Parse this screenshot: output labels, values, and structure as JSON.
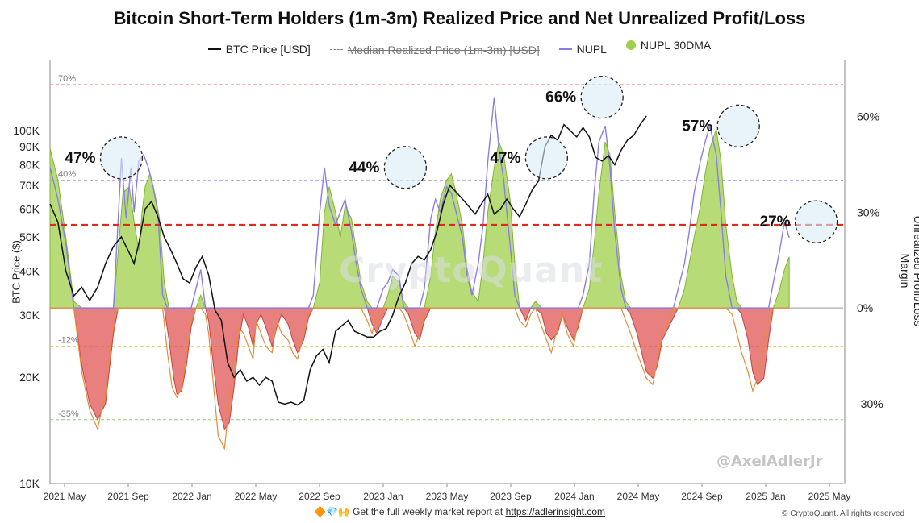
{
  "title": "Bitcoin Short-Term Holders (1m-3m)  Realized Price and Net Unrealized Profit/Loss",
  "legend": {
    "btc": "BTC Price [USD]",
    "median": "Median Realized Price (1m-3m) [USD]",
    "nupl": "NUPL",
    "nupl30": "NUPL 30DMA"
  },
  "footer": {
    "icons": "🔶💎🙌",
    "text": "Get the full weekly market report at",
    "url": "https://adlerinsight.com"
  },
  "copyright": "© CryptoQuant. All rights reserved",
  "watermark": "CryptoQuant",
  "author": "@AxelAdlerJr",
  "colors": {
    "btc": "#111111",
    "nupl": "#8a7de6",
    "positive_fill": "#9fd04a",
    "negative_fill": "#e05555",
    "orange_line": "#e88a3a",
    "red_dashed": "#e02a1a"
  },
  "chart_data": {
    "type": "area",
    "title": "Bitcoin Short-Term Holders (1m-3m)  Realized Price and Net Unrealized Profit/Loss",
    "ylabel_left": "BTC Price ($)",
    "ylabel_right": "Unrealized Profit/Loss Margin",
    "x_ticks": [
      "2021 May",
      "2021 Sep",
      "2022 Jan",
      "2022 May",
      "2022 Sep",
      "2023 Jan",
      "2023 May",
      "2023 Sep",
      "2024 Jan",
      "2024 May",
      "2024 Sep",
      "2025 Jan",
      "2025 May"
    ],
    "left_ticks": [
      {
        "label": "100K",
        "value": 100000
      },
      {
        "label": "90K",
        "value": 90000
      },
      {
        "label": "80K",
        "value": 80000
      },
      {
        "label": "70K",
        "value": 70000
      },
      {
        "label": "60K",
        "value": 60000
      },
      {
        "label": "50K",
        "value": 50000
      },
      {
        "label": "40K",
        "value": 40000
      },
      {
        "label": "30K",
        "value": 30000
      },
      {
        "label": "20K",
        "value": 20000
      },
      {
        "label": "10K",
        "value": 10000
      }
    ],
    "ylim_left": [
      10000,
      150000
    ],
    "right_ticks": [
      {
        "label": "60%",
        "value": 60
      },
      {
        "label": "30%",
        "value": 30
      },
      {
        "label": "0%",
        "value": 0
      },
      {
        "label": "-30%",
        "value": -30
      }
    ],
    "ylim_right": [
      -55,
      75
    ],
    "ref_lines": [
      {
        "label": "70%",
        "value": 70,
        "color": "#e8a0a0"
      },
      {
        "label": "40%",
        "value": 40,
        "color": "#a9a3ee"
      },
      {
        "label": "-12%",
        "value": -12,
        "color": "#d6d36a"
      },
      {
        "label": "-35%",
        "value": -35,
        "color": "#8ccc7a"
      }
    ],
    "red_line_value": 26,
    "annotations": [
      {
        "label": "47%",
        "x": 4.5,
        "value": 47
      },
      {
        "label": "44%",
        "x": 22.4,
        "value": 44
      },
      {
        "label": "47%",
        "x": 31.3,
        "value": 47
      },
      {
        "label": "66%",
        "x": 34.8,
        "value": 66
      },
      {
        "label": "57%",
        "x": 43.4,
        "value": 57
      },
      {
        "label": "27%",
        "x": 48.3,
        "value": 27
      }
    ],
    "x_range": [
      0,
      50
    ],
    "nupl30": [
      [
        0,
        50
      ],
      [
        0.5,
        40
      ],
      [
        1,
        22
      ],
      [
        1.5,
        2
      ],
      [
        2,
        -18
      ],
      [
        2.5,
        -30
      ],
      [
        3,
        -35
      ],
      [
        3.5,
        -30
      ],
      [
        4,
        -8
      ],
      [
        4.3,
        18
      ],
      [
        4.6,
        36
      ],
      [
        5,
        38
      ],
      [
        5.3,
        27
      ],
      [
        5.6,
        18
      ],
      [
        5.8,
        30
      ],
      [
        6,
        38
      ],
      [
        6.3,
        42
      ],
      [
        6.6,
        36
      ],
      [
        6.9,
        28
      ],
      [
        7.2,
        8
      ],
      [
        7.5,
        -10
      ],
      [
        7.8,
        -22
      ],
      [
        8,
        -27
      ],
      [
        8.3,
        -26
      ],
      [
        8.6,
        -18
      ],
      [
        8.9,
        -6
      ],
      [
        9.2,
        0
      ],
      [
        9.5,
        4
      ],
      [
        9.8,
        0
      ],
      [
        10,
        -4
      ],
      [
        10.3,
        -18
      ],
      [
        10.6,
        -30
      ],
      [
        11,
        -38
      ],
      [
        11.3,
        -36
      ],
      [
        11.6,
        -25
      ],
      [
        11.9,
        -10
      ],
      [
        12.2,
        -2
      ],
      [
        12.5,
        -6
      ],
      [
        12.8,
        -12
      ],
      [
        13,
        -5
      ],
      [
        13.3,
        -2
      ],
      [
        13.6,
        -6
      ],
      [
        14,
        -12
      ],
      [
        14.3,
        -6
      ],
      [
        14.6,
        -2
      ],
      [
        15,
        -5
      ],
      [
        15.3,
        -10
      ],
      [
        15.6,
        -14
      ],
      [
        16,
        -10
      ],
      [
        16.3,
        -3
      ],
      [
        16.6,
        0
      ],
      [
        17,
        8
      ],
      [
        17.3,
        30
      ],
      [
        17.6,
        38
      ],
      [
        18,
        30
      ],
      [
        18.3,
        22
      ],
      [
        18.6,
        32
      ],
      [
        19,
        28
      ],
      [
        19.3,
        18
      ],
      [
        19.6,
        8
      ],
      [
        20,
        2
      ],
      [
        20.3,
        -5
      ],
      [
        20.6,
        -8
      ],
      [
        21,
        -3
      ],
      [
        21.3,
        4
      ],
      [
        21.6,
        10
      ],
      [
        22,
        8
      ],
      [
        22.3,
        2
      ],
      [
        22.6,
        -2
      ],
      [
        23,
        -8
      ],
      [
        23.3,
        -10
      ],
      [
        23.6,
        -4
      ],
      [
        24,
        10
      ],
      [
        24.3,
        24
      ],
      [
        24.6,
        34
      ],
      [
        25,
        40
      ],
      [
        25.3,
        42
      ],
      [
        25.6,
        36
      ],
      [
        26,
        26
      ],
      [
        26.3,
        12
      ],
      [
        26.6,
        5
      ],
      [
        27,
        2
      ],
      [
        27.3,
        14
      ],
      [
        27.6,
        30
      ],
      [
        28,
        44
      ],
      [
        28.3,
        52
      ],
      [
        28.6,
        48
      ],
      [
        29,
        34
      ],
      [
        29.3,
        14
      ],
      [
        29.6,
        0
      ],
      [
        30,
        -4
      ],
      [
        30.3,
        0
      ],
      [
        30.6,
        2
      ],
      [
        31,
        -2
      ],
      [
        31.3,
        -8
      ],
      [
        31.6,
        -10
      ],
      [
        32,
        -8
      ],
      [
        32.3,
        -2
      ],
      [
        32.6,
        -6
      ],
      [
        33,
        -10
      ],
      [
        33.3,
        -6
      ],
      [
        33.6,
        0
      ],
      [
        34,
        6
      ],
      [
        34.3,
        20
      ],
      [
        34.6,
        36
      ],
      [
        35,
        52
      ],
      [
        35.3,
        48
      ],
      [
        35.6,
        30
      ],
      [
        36,
        10
      ],
      [
        36.3,
        2
      ],
      [
        36.6,
        -2
      ],
      [
        37,
        -8
      ],
      [
        37.3,
        -14
      ],
      [
        37.6,
        -20
      ],
      [
        38,
        -22
      ],
      [
        38.3,
        -18
      ],
      [
        38.6,
        -10
      ],
      [
        39,
        -6
      ],
      [
        39.3,
        -3
      ],
      [
        39.6,
        0
      ],
      [
        40,
        6
      ],
      [
        40.3,
        14
      ],
      [
        40.6,
        22
      ],
      [
        41,
        32
      ],
      [
        41.3,
        42
      ],
      [
        41.6,
        50
      ],
      [
        42,
        56
      ],
      [
        42.3,
        46
      ],
      [
        42.6,
        26
      ],
      [
        43,
        10
      ],
      [
        43.3,
        2
      ],
      [
        43.6,
        -2
      ],
      [
        44,
        -10
      ],
      [
        44.3,
        -20
      ],
      [
        44.6,
        -24
      ],
      [
        45,
        -22
      ],
      [
        45.3,
        -10
      ],
      [
        45.6,
        0
      ],
      [
        46,
        6
      ],
      [
        46.3,
        12
      ],
      [
        46.6,
        16
      ]
    ],
    "nupl": [
      [
        0,
        44
      ],
      [
        0.5,
        34
      ],
      [
        1,
        20
      ],
      [
        1.5,
        0
      ],
      [
        2,
        -20
      ],
      [
        2.5,
        -32
      ],
      [
        3,
        -38
      ],
      [
        3.5,
        -26
      ],
      [
        4,
        -4
      ],
      [
        4.3,
        28
      ],
      [
        4.5,
        47
      ],
      [
        4.8,
        28
      ],
      [
        5.1,
        44
      ],
      [
        5.3,
        30
      ],
      [
        5.6,
        46
      ],
      [
        5.9,
        48
      ],
      [
        6.2,
        44
      ],
      [
        6.5,
        38
      ],
      [
        6.8,
        30
      ],
      [
        7.1,
        4
      ],
      [
        7.4,
        -14
      ],
      [
        7.7,
        -25
      ],
      [
        8,
        -28
      ],
      [
        8.3,
        -25
      ],
      [
        8.6,
        -14
      ],
      [
        8.9,
        -4
      ],
      [
        9.2,
        6
      ],
      [
        9.5,
        12
      ],
      [
        9.8,
        -2
      ],
      [
        10,
        -8
      ],
      [
        10.3,
        -24
      ],
      [
        10.6,
        -40
      ],
      [
        11,
        -44
      ],
      [
        11.3,
        -30
      ],
      [
        11.6,
        -18
      ],
      [
        11.9,
        -6
      ],
      [
        12.2,
        -8
      ],
      [
        12.5,
        -12
      ],
      [
        12.8,
        -16
      ],
      [
        13,
        -4
      ],
      [
        13.3,
        -8
      ],
      [
        13.6,
        -12
      ],
      [
        14,
        -14
      ],
      [
        14.3,
        -4
      ],
      [
        14.6,
        -8
      ],
      [
        15,
        -10
      ],
      [
        15.3,
        -14
      ],
      [
        15.6,
        -16
      ],
      [
        16,
        -8
      ],
      [
        16.3,
        -2
      ],
      [
        16.6,
        4
      ],
      [
        17,
        30
      ],
      [
        17.3,
        44
      ],
      [
        17.6,
        32
      ],
      [
        18,
        26
      ],
      [
        18.3,
        30
      ],
      [
        18.6,
        34
      ],
      [
        19,
        24
      ],
      [
        19.3,
        14
      ],
      [
        19.6,
        6
      ],
      [
        20,
        -4
      ],
      [
        20.3,
        -8
      ],
      [
        20.6,
        -2
      ],
      [
        21,
        6
      ],
      [
        21.3,
        8
      ],
      [
        21.6,
        12
      ],
      [
        22,
        10
      ],
      [
        22.3,
        -2
      ],
      [
        22.6,
        -6
      ],
      [
        23,
        -12
      ],
      [
        23.3,
        -8
      ],
      [
        23.6,
        6
      ],
      [
        24,
        28
      ],
      [
        24.3,
        34
      ],
      [
        24.6,
        30
      ],
      [
        25,
        38
      ],
      [
        25.3,
        36
      ],
      [
        25.6,
        30
      ],
      [
        26,
        22
      ],
      [
        26.3,
        10
      ],
      [
        26.6,
        4
      ],
      [
        27,
        14
      ],
      [
        27.3,
        26
      ],
      [
        27.6,
        46
      ],
      [
        28,
        66
      ],
      [
        28.3,
        50
      ],
      [
        28.6,
        40
      ],
      [
        29,
        20
      ],
      [
        29.3,
        4
      ],
      [
        29.6,
        -4
      ],
      [
        30,
        -6
      ],
      [
        30.3,
        -2
      ],
      [
        30.6,
        0
      ],
      [
        31,
        -6
      ],
      [
        31.3,
        -10
      ],
      [
        31.6,
        -14
      ],
      [
        32,
        -6
      ],
      [
        32.3,
        -2
      ],
      [
        32.6,
        -8
      ],
      [
        33,
        -12
      ],
      [
        33.3,
        -4
      ],
      [
        33.6,
        4
      ],
      [
        34,
        14
      ],
      [
        34.3,
        36
      ],
      [
        34.6,
        52
      ],
      [
        35,
        57
      ],
      [
        35.3,
        44
      ],
      [
        35.6,
        24
      ],
      [
        36,
        6
      ],
      [
        36.3,
        -4
      ],
      [
        36.6,
        -8
      ],
      [
        37,
        -14
      ],
      [
        37.3,
        -18
      ],
      [
        37.6,
        -22
      ],
      [
        38,
        -24
      ],
      [
        38.3,
        -16
      ],
      [
        38.6,
        -8
      ],
      [
        39,
        -4
      ],
      [
        39.3,
        0
      ],
      [
        39.6,
        6
      ],
      [
        40,
        14
      ],
      [
        40.3,
        24
      ],
      [
        40.6,
        36
      ],
      [
        41,
        46
      ],
      [
        41.3,
        52
      ],
      [
        41.6,
        57
      ],
      [
        42,
        48
      ],
      [
        42.3,
        30
      ],
      [
        42.6,
        10
      ],
      [
        43,
        -2
      ],
      [
        43.3,
        -8
      ],
      [
        43.6,
        -14
      ],
      [
        44,
        -20
      ],
      [
        44.3,
        -26
      ],
      [
        44.6,
        -22
      ],
      [
        45,
        -12
      ],
      [
        45.3,
        -4
      ],
      [
        45.6,
        8
      ],
      [
        46,
        18
      ],
      [
        46.3,
        27
      ],
      [
        46.6,
        22
      ]
    ],
    "btc_price": [
      [
        0,
        62000
      ],
      [
        0.5,
        55000
      ],
      [
        1,
        40000
      ],
      [
        1.5,
        34000
      ],
      [
        2,
        36000
      ],
      [
        2.5,
        33000
      ],
      [
        3,
        36000
      ],
      [
        3.5,
        42000
      ],
      [
        4,
        47000
      ],
      [
        4.5,
        50000
      ],
      [
        5,
        45000
      ],
      [
        5.3,
        42000
      ],
      [
        5.6,
        48000
      ],
      [
        6,
        60000
      ],
      [
        6.4,
        63000
      ],
      [
        6.8,
        57000
      ],
      [
        7.2,
        50000
      ],
      [
        7.6,
        46000
      ],
      [
        8,
        42000
      ],
      [
        8.4,
        38000
      ],
      [
        8.8,
        37000
      ],
      [
        9.2,
        41000
      ],
      [
        9.6,
        44000
      ],
      [
        10,
        39000
      ],
      [
        10.4,
        31000
      ],
      [
        10.8,
        29000
      ],
      [
        11.2,
        22000
      ],
      [
        11.6,
        20000
      ],
      [
        12,
        21000
      ],
      [
        12.4,
        19500
      ],
      [
        12.8,
        20000
      ],
      [
        13.2,
        19000
      ],
      [
        13.6,
        20000
      ],
      [
        14,
        19500
      ],
      [
        14.4,
        17000
      ],
      [
        14.8,
        16800
      ],
      [
        15.2,
        17000
      ],
      [
        15.6,
        16700
      ],
      [
        16,
        17200
      ],
      [
        16.4,
        21000
      ],
      [
        16.8,
        23000
      ],
      [
        17.2,
        24000
      ],
      [
        17.6,
        22000
      ],
      [
        18,
        27000
      ],
      [
        18.4,
        28000
      ],
      [
        18.8,
        29000
      ],
      [
        19.2,
        27000
      ],
      [
        19.6,
        26500
      ],
      [
        20,
        26000
      ],
      [
        20.4,
        26000
      ],
      [
        20.8,
        27000
      ],
      [
        21.2,
        27500
      ],
      [
        21.6,
        30000
      ],
      [
        22,
        34000
      ],
      [
        22.4,
        37000
      ],
      [
        22.8,
        42000
      ],
      [
        23.2,
        44000
      ],
      [
        23.6,
        43000
      ],
      [
        24,
        46000
      ],
      [
        24.4,
        52000
      ],
      [
        24.8,
        62000
      ],
      [
        25.2,
        70000
      ],
      [
        25.6,
        67000
      ],
      [
        26,
        64000
      ],
      [
        26.4,
        61000
      ],
      [
        26.8,
        58000
      ],
      [
        27.2,
        62000
      ],
      [
        27.6,
        66000
      ],
      [
        28,
        58000
      ],
      [
        28.4,
        60000
      ],
      [
        28.8,
        64000
      ],
      [
        29.2,
        60000
      ],
      [
        29.6,
        57000
      ],
      [
        30,
        62000
      ],
      [
        30.4,
        68000
      ],
      [
        30.8,
        72000
      ],
      [
        31.2,
        90000
      ],
      [
        31.6,
        97000
      ],
      [
        32,
        94000
      ],
      [
        32.4,
        104000
      ],
      [
        32.8,
        100000
      ],
      [
        33.2,
        96000
      ],
      [
        33.6,
        102000
      ],
      [
        34,
        96000
      ],
      [
        34.4,
        84000
      ],
      [
        34.8,
        82000
      ],
      [
        35.2,
        85000
      ],
      [
        35.6,
        80000
      ],
      [
        36,
        88000
      ],
      [
        36.4,
        94000
      ],
      [
        36.8,
        97000
      ],
      [
        37.2,
        104000
      ],
      [
        37.6,
        110000
      ]
    ]
  }
}
